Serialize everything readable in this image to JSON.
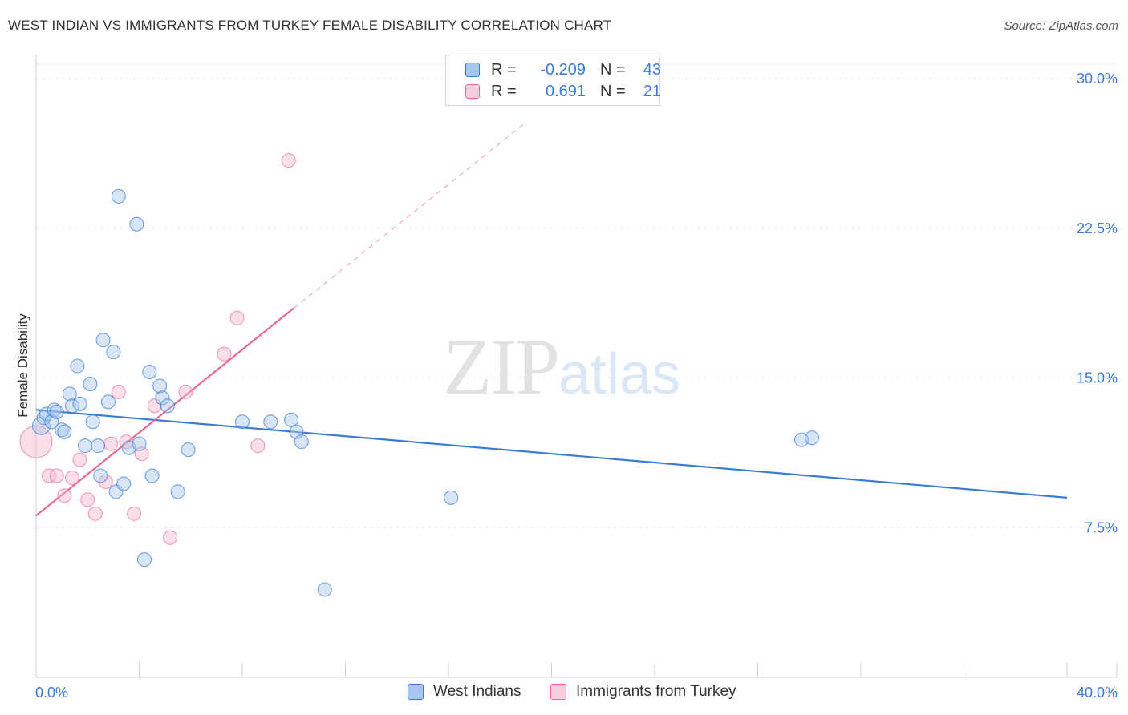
{
  "title": "WEST INDIAN VS IMMIGRANTS FROM TURKEY FEMALE DISABILITY CORRELATION CHART",
  "source": "Source: ZipAtlas.com",
  "watermark": {
    "zip": "ZIP",
    "atlas": "atlas"
  },
  "colors": {
    "blue": "#3a7bd5",
    "blue_fill": "#a9c6ee",
    "pink": "#e8698f",
    "pink_fill": "#f5b8cb",
    "grid": "#e3e3e3"
  },
  "legend": {
    "rows": [
      {
        "r_label": "R =",
        "r_value": "-0.209",
        "n_label": "N =",
        "n_value": "43"
      },
      {
        "r_label": "R =",
        "r_value": "0.691",
        "n_label": "N =",
        "n_value": "21"
      }
    ]
  },
  "bottom_legend": {
    "series1": "West Indians",
    "series2": "Immigrants from Turkey"
  },
  "chart_data": {
    "type": "scatter",
    "title": "WEST INDIAN VS IMMIGRANTS FROM TURKEY FEMALE DISABILITY CORRELATION CHART",
    "xlabel": "",
    "ylabel": "Female Disability",
    "xlim": [
      0,
      40
    ],
    "ylim": [
      0,
      30
    ],
    "x_tick_labels": [
      "0.0%",
      "40.0%"
    ],
    "y_ticks": [
      7.5,
      15.0,
      22.5,
      30.0
    ],
    "y_tick_labels": [
      "7.5%",
      "15.0%",
      "22.5%",
      "30.0%"
    ],
    "series": [
      {
        "name": "West Indians",
        "r": -0.209,
        "n": 43,
        "trend": {
          "x0": 0.0,
          "y0": 13.4,
          "x1": 40.0,
          "y1": 9.0
        },
        "points": [
          [
            0.2,
            12.6
          ],
          [
            0.3,
            13.0
          ],
          [
            0.4,
            13.2
          ],
          [
            0.6,
            12.8
          ],
          [
            0.7,
            13.4
          ],
          [
            0.8,
            13.3
          ],
          [
            1.0,
            12.4
          ],
          [
            1.1,
            12.3
          ],
          [
            1.3,
            14.2
          ],
          [
            1.4,
            13.6
          ],
          [
            1.6,
            15.6
          ],
          [
            1.7,
            13.7
          ],
          [
            1.9,
            11.6
          ],
          [
            2.1,
            14.7
          ],
          [
            2.2,
            12.8
          ],
          [
            2.4,
            11.6
          ],
          [
            2.5,
            10.1
          ],
          [
            2.6,
            16.9
          ],
          [
            2.8,
            13.8
          ],
          [
            3.0,
            16.3
          ],
          [
            3.1,
            9.3
          ],
          [
            3.2,
            24.1
          ],
          [
            3.4,
            9.7
          ],
          [
            3.6,
            11.5
          ],
          [
            3.9,
            22.7
          ],
          [
            4.0,
            11.7
          ],
          [
            4.2,
            5.9
          ],
          [
            4.4,
            15.3
          ],
          [
            4.5,
            10.1
          ],
          [
            4.8,
            14.6
          ],
          [
            4.9,
            14.0
          ],
          [
            5.1,
            13.6
          ],
          [
            5.5,
            9.3
          ],
          [
            5.9,
            11.4
          ],
          [
            8.0,
            12.8
          ],
          [
            9.1,
            12.8
          ],
          [
            9.9,
            12.9
          ],
          [
            10.1,
            12.3
          ],
          [
            10.3,
            11.8
          ],
          [
            11.2,
            4.4
          ],
          [
            16.1,
            9.0
          ],
          [
            29.7,
            11.9
          ],
          [
            30.1,
            12.0
          ]
        ]
      },
      {
        "name": "Immigrants from Turkey",
        "r": 0.691,
        "n": 21,
        "trend": {
          "x0": 0.0,
          "y0": 8.1,
          "x1": 10.0,
          "y1": 18.5,
          "dash_x1": 19.0,
          "dash_y1": 27.8
        },
        "points": [
          [
            0.0,
            11.8
          ],
          [
            0.5,
            10.1
          ],
          [
            0.8,
            10.1
          ],
          [
            1.1,
            9.1
          ],
          [
            1.4,
            10.0
          ],
          [
            1.7,
            10.9
          ],
          [
            2.0,
            8.9
          ],
          [
            2.3,
            8.2
          ],
          [
            2.7,
            9.8
          ],
          [
            2.9,
            11.7
          ],
          [
            3.2,
            14.3
          ],
          [
            3.5,
            11.8
          ],
          [
            3.8,
            8.2
          ],
          [
            4.1,
            11.2
          ],
          [
            4.6,
            13.6
          ],
          [
            5.2,
            7.0
          ],
          [
            5.8,
            14.3
          ],
          [
            7.3,
            16.2
          ],
          [
            7.8,
            18.0
          ],
          [
            8.6,
            11.6
          ],
          [
            9.8,
            25.9
          ]
        ]
      }
    ]
  }
}
